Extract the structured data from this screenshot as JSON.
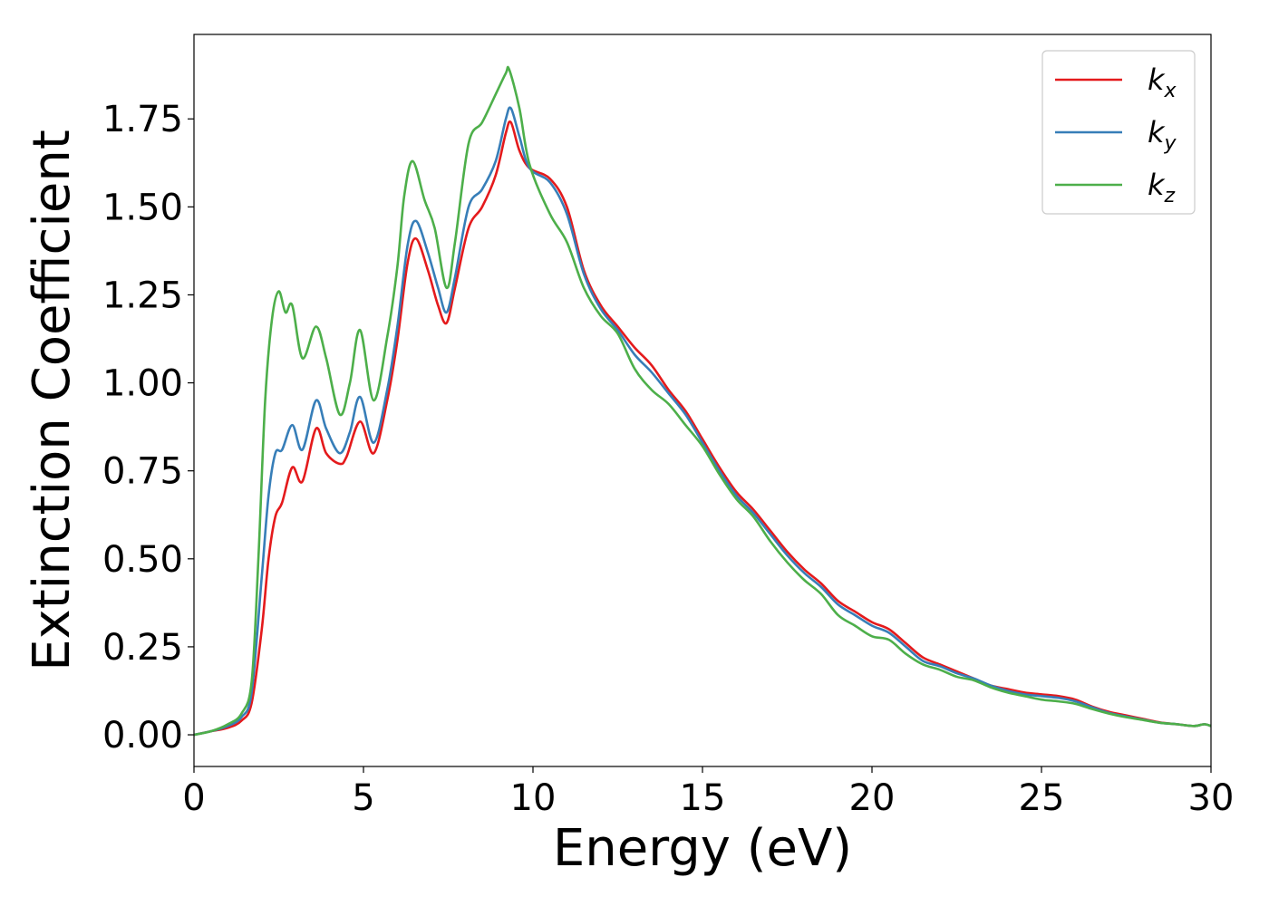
{
  "chart_data": {
    "type": "line",
    "title": "",
    "xlabel": "Energy (eV)",
    "ylabel": "Extinction Coefficient",
    "xlim": [
      0,
      30
    ],
    "ylim": [
      -0.09,
      1.99
    ],
    "xticks": [
      0,
      5,
      10,
      15,
      20,
      25,
      30
    ],
    "xtick_labels": [
      "0",
      "5",
      "10",
      "15",
      "20",
      "25",
      "30"
    ],
    "yticks": [
      0,
      0.25,
      0.5,
      0.75,
      1.0,
      1.25,
      1.5,
      1.75
    ],
    "ytick_labels": [
      "0.00",
      "0.25",
      "0.50",
      "0.75",
      "1.00",
      "1.25",
      "1.50",
      "1.75"
    ],
    "grid": false,
    "legend_position": "top-right",
    "series": [
      {
        "name": "k_x",
        "legend_base": "k",
        "legend_sub": "x",
        "color": "#e41a1c",
        "points": [
          [
            0,
            0.0
          ],
          [
            0.5,
            0.01
          ],
          [
            1.0,
            0.02
          ],
          [
            1.4,
            0.04
          ],
          [
            1.7,
            0.09
          ],
          [
            2.0,
            0.3
          ],
          [
            2.2,
            0.5
          ],
          [
            2.4,
            0.62
          ],
          [
            2.6,
            0.66
          ],
          [
            2.9,
            0.76
          ],
          [
            3.2,
            0.72
          ],
          [
            3.6,
            0.87
          ],
          [
            3.9,
            0.8
          ],
          [
            4.3,
            0.77
          ],
          [
            4.5,
            0.79
          ],
          [
            4.9,
            0.89
          ],
          [
            5.3,
            0.8
          ],
          [
            5.7,
            0.95
          ],
          [
            6.0,
            1.12
          ],
          [
            6.3,
            1.34
          ],
          [
            6.55,
            1.41
          ],
          [
            6.9,
            1.32
          ],
          [
            7.2,
            1.22
          ],
          [
            7.45,
            1.17
          ],
          [
            7.7,
            1.27
          ],
          [
            8.1,
            1.44
          ],
          [
            8.5,
            1.5
          ],
          [
            8.9,
            1.59
          ],
          [
            9.2,
            1.71
          ],
          [
            9.35,
            1.74
          ],
          [
            9.6,
            1.66
          ],
          [
            9.9,
            1.61
          ],
          [
            10.5,
            1.58
          ],
          [
            11.0,
            1.5
          ],
          [
            11.5,
            1.32
          ],
          [
            12.0,
            1.22
          ],
          [
            12.5,
            1.16
          ],
          [
            13.0,
            1.1
          ],
          [
            13.5,
            1.05
          ],
          [
            14.0,
            0.98
          ],
          [
            14.5,
            0.92
          ],
          [
            15.0,
            0.84
          ],
          [
            15.5,
            0.76
          ],
          [
            16.0,
            0.69
          ],
          [
            16.5,
            0.64
          ],
          [
            17.0,
            0.58
          ],
          [
            17.5,
            0.52
          ],
          [
            18.0,
            0.47
          ],
          [
            18.5,
            0.43
          ],
          [
            19.0,
            0.38
          ],
          [
            19.5,
            0.35
          ],
          [
            20.0,
            0.32
          ],
          [
            20.5,
            0.3
          ],
          [
            21.0,
            0.26
          ],
          [
            21.5,
            0.22
          ],
          [
            22.0,
            0.2
          ],
          [
            22.5,
            0.18
          ],
          [
            23.0,
            0.16
          ],
          [
            23.5,
            0.14
          ],
          [
            24.0,
            0.13
          ],
          [
            24.5,
            0.12
          ],
          [
            25.0,
            0.115
          ],
          [
            25.5,
            0.11
          ],
          [
            26.0,
            0.1
          ],
          [
            26.5,
            0.08
          ],
          [
            27.0,
            0.065
          ],
          [
            27.5,
            0.055
          ],
          [
            28.0,
            0.045
          ],
          [
            28.5,
            0.035
          ],
          [
            29.0,
            0.03
          ],
          [
            29.5,
            0.025
          ],
          [
            29.8,
            0.03
          ],
          [
            30.0,
            0.025
          ]
        ]
      },
      {
        "name": "k_y",
        "legend_base": "k",
        "legend_sub": "y",
        "color": "#377eb8",
        "points": [
          [
            0,
            0.0
          ],
          [
            0.5,
            0.01
          ],
          [
            1.0,
            0.025
          ],
          [
            1.4,
            0.05
          ],
          [
            1.7,
            0.12
          ],
          [
            2.0,
            0.45
          ],
          [
            2.2,
            0.68
          ],
          [
            2.4,
            0.8
          ],
          [
            2.6,
            0.81
          ],
          [
            2.9,
            0.88
          ],
          [
            3.2,
            0.81
          ],
          [
            3.6,
            0.95
          ],
          [
            3.9,
            0.87
          ],
          [
            4.3,
            0.8
          ],
          [
            4.6,
            0.86
          ],
          [
            4.9,
            0.96
          ],
          [
            5.3,
            0.83
          ],
          [
            5.7,
            0.98
          ],
          [
            6.0,
            1.16
          ],
          [
            6.3,
            1.39
          ],
          [
            6.55,
            1.46
          ],
          [
            6.9,
            1.37
          ],
          [
            7.2,
            1.27
          ],
          [
            7.45,
            1.2
          ],
          [
            7.7,
            1.3
          ],
          [
            8.1,
            1.5
          ],
          [
            8.5,
            1.55
          ],
          [
            8.9,
            1.63
          ],
          [
            9.2,
            1.75
          ],
          [
            9.35,
            1.78
          ],
          [
            9.6,
            1.7
          ],
          [
            9.9,
            1.61
          ],
          [
            10.5,
            1.57
          ],
          [
            11.0,
            1.48
          ],
          [
            11.5,
            1.31
          ],
          [
            12.0,
            1.21
          ],
          [
            12.5,
            1.15
          ],
          [
            13.0,
            1.08
          ],
          [
            13.5,
            1.03
          ],
          [
            14.0,
            0.97
          ],
          [
            14.5,
            0.91
          ],
          [
            15.0,
            0.83
          ],
          [
            15.5,
            0.75
          ],
          [
            16.0,
            0.68
          ],
          [
            16.5,
            0.63
          ],
          [
            17.0,
            0.57
          ],
          [
            17.5,
            0.51
          ],
          [
            18.0,
            0.46
          ],
          [
            18.5,
            0.42
          ],
          [
            19.0,
            0.37
          ],
          [
            19.5,
            0.34
          ],
          [
            20.0,
            0.31
          ],
          [
            20.5,
            0.29
          ],
          [
            21.0,
            0.25
          ],
          [
            21.5,
            0.21
          ],
          [
            22.0,
            0.195
          ],
          [
            22.5,
            0.175
          ],
          [
            23.0,
            0.16
          ],
          [
            23.5,
            0.14
          ],
          [
            24.0,
            0.125
          ],
          [
            24.5,
            0.115
          ],
          [
            25.0,
            0.11
          ],
          [
            25.5,
            0.105
          ],
          [
            26.0,
            0.095
          ],
          [
            26.5,
            0.078
          ],
          [
            27.0,
            0.062
          ],
          [
            27.5,
            0.052
          ],
          [
            28.0,
            0.043
          ],
          [
            28.5,
            0.034
          ],
          [
            29.0,
            0.03
          ],
          [
            29.5,
            0.025
          ],
          [
            29.8,
            0.03
          ],
          [
            30.0,
            0.025
          ]
        ]
      },
      {
        "name": "k_z",
        "legend_base": "k",
        "legend_sub": "z",
        "color": "#4daf4a",
        "points": [
          [
            0,
            0.0
          ],
          [
            0.5,
            0.01
          ],
          [
            1.0,
            0.03
          ],
          [
            1.4,
            0.06
          ],
          [
            1.7,
            0.15
          ],
          [
            1.9,
            0.5
          ],
          [
            2.1,
            0.95
          ],
          [
            2.3,
            1.18
          ],
          [
            2.5,
            1.26
          ],
          [
            2.7,
            1.2
          ],
          [
            2.9,
            1.22
          ],
          [
            3.2,
            1.07
          ],
          [
            3.6,
            1.16
          ],
          [
            3.9,
            1.07
          ],
          [
            4.3,
            0.91
          ],
          [
            4.6,
            1.0
          ],
          [
            4.9,
            1.15
          ],
          [
            5.3,
            0.95
          ],
          [
            5.7,
            1.13
          ],
          [
            6.0,
            1.33
          ],
          [
            6.2,
            1.53
          ],
          [
            6.45,
            1.63
          ],
          [
            6.8,
            1.52
          ],
          [
            7.1,
            1.44
          ],
          [
            7.45,
            1.27
          ],
          [
            7.7,
            1.4
          ],
          [
            8.1,
            1.68
          ],
          [
            8.5,
            1.74
          ],
          [
            8.9,
            1.82
          ],
          [
            9.2,
            1.88
          ],
          [
            9.3,
            1.89
          ],
          [
            9.6,
            1.78
          ],
          [
            9.9,
            1.62
          ],
          [
            10.5,
            1.48
          ],
          [
            11.0,
            1.4
          ],
          [
            11.5,
            1.27
          ],
          [
            12.0,
            1.19
          ],
          [
            12.5,
            1.14
          ],
          [
            13.0,
            1.04
          ],
          [
            13.5,
            0.98
          ],
          [
            14.0,
            0.94
          ],
          [
            14.5,
            0.88
          ],
          [
            15.0,
            0.82
          ],
          [
            15.5,
            0.74
          ],
          [
            16.0,
            0.67
          ],
          [
            16.5,
            0.62
          ],
          [
            17.0,
            0.55
          ],
          [
            17.5,
            0.49
          ],
          [
            18.0,
            0.44
          ],
          [
            18.5,
            0.4
          ],
          [
            19.0,
            0.34
          ],
          [
            19.5,
            0.31
          ],
          [
            20.0,
            0.28
          ],
          [
            20.5,
            0.27
          ],
          [
            21.0,
            0.23
          ],
          [
            21.5,
            0.2
          ],
          [
            22.0,
            0.185
          ],
          [
            22.5,
            0.165
          ],
          [
            23.0,
            0.155
          ],
          [
            23.5,
            0.135
          ],
          [
            24.0,
            0.12
          ],
          [
            24.5,
            0.11
          ],
          [
            25.0,
            0.1
          ],
          [
            25.5,
            0.095
          ],
          [
            26.0,
            0.088
          ],
          [
            26.5,
            0.073
          ],
          [
            27.0,
            0.06
          ],
          [
            27.5,
            0.05
          ],
          [
            28.0,
            0.042
          ],
          [
            28.5,
            0.034
          ],
          [
            29.0,
            0.03
          ],
          [
            29.5,
            0.025
          ],
          [
            29.8,
            0.03
          ],
          [
            30.0,
            0.025
          ]
        ]
      }
    ]
  }
}
